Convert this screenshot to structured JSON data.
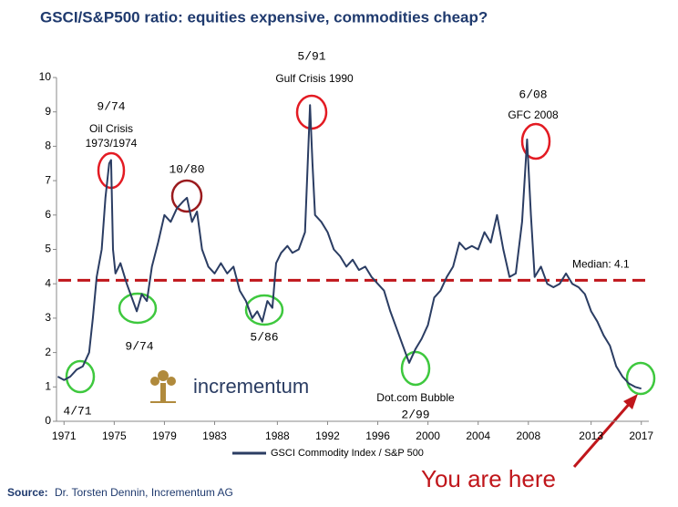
{
  "chart_data": {
    "type": "line",
    "title": "GSCI/S&P500 ratio: equities expensive, commodities cheap?",
    "x": [
      1970.5,
      1971,
      1971.5,
      1972,
      1972.5,
      1973,
      1973.3,
      1973.6,
      1974,
      1974.3,
      1974.6,
      1974.75,
      1974.9,
      1975.1,
      1975.5,
      1976,
      1976.5,
      1976.8,
      1977.2,
      1977.6,
      1978,
      1978.5,
      1979,
      1979.5,
      1980,
      1980.5,
      1980.8,
      1981.2,
      1981.6,
      1982,
      1982.5,
      1983,
      1983.5,
      1984,
      1984.5,
      1985,
      1985.5,
      1986,
      1986.4,
      1986.8,
      1987.2,
      1987.6,
      1987.9,
      1988.3,
      1988.8,
      1989.2,
      1989.7,
      1990.2,
      1990.6,
      1990.8,
      1991,
      1991.5,
      1992,
      1992.5,
      1993,
      1993.5,
      1994,
      1994.5,
      1995,
      1995.5,
      1996,
      1996.5,
      1997,
      1997.5,
      1998,
      1998.5,
      1999,
      1999.5,
      2000,
      2000.5,
      2001,
      2001.5,
      2002,
      2002.5,
      2003,
      2003.5,
      2004,
      2004.5,
      2005,
      2005.5,
      2006,
      2006.5,
      2007,
      2007.5,
      2007.9,
      2008.2,
      2008.5,
      2009,
      2009.5,
      2010,
      2010.5,
      2011,
      2011.5,
      2012,
      2012.5,
      2013,
      2013.5,
      2014,
      2014.5,
      2015,
      2015.5,
      2016,
      2016.5,
      2017
    ],
    "series": [
      {
        "name": "GSCI Commodity Index / S&P 500",
        "color": "#2b3d63",
        "values": [
          1.3,
          1.2,
          1.3,
          1.5,
          1.6,
          2.0,
          3.0,
          4.2,
          5.0,
          6.5,
          7.5,
          7.6,
          5.0,
          4.3,
          4.6,
          4.0,
          3.5,
          3.2,
          3.7,
          3.5,
          4.5,
          5.2,
          6.0,
          5.8,
          6.2,
          6.4,
          6.5,
          5.8,
          6.1,
          5.0,
          4.5,
          4.3,
          4.6,
          4.3,
          4.5,
          3.8,
          3.5,
          3.0,
          3.2,
          2.9,
          3.5,
          3.3,
          4.6,
          4.9,
          5.1,
          4.9,
          5.0,
          5.5,
          9.2,
          7.5,
          6.0,
          5.8,
          5.5,
          5.0,
          4.8,
          4.5,
          4.7,
          4.4,
          4.5,
          4.2,
          4.0,
          3.8,
          3.2,
          2.7,
          2.2,
          1.7,
          2.1,
          2.4,
          2.8,
          3.6,
          3.8,
          4.2,
          4.5,
          5.2,
          5.0,
          5.1,
          5.0,
          5.5,
          5.2,
          6.0,
          5.0,
          4.2,
          4.3,
          5.8,
          8.2,
          6.0,
          4.2,
          4.5,
          4.0,
          3.9,
          4.0,
          4.3,
          4.0,
          3.9,
          3.7,
          3.2,
          2.9,
          2.5,
          2.2,
          1.6,
          1.3,
          1.1,
          1.0,
          0.95
        ]
      }
    ],
    "xlim": [
      1970.4,
      2017.6
    ],
    "xticks": [
      1971,
      1975,
      1979,
      1983,
      1988,
      1992,
      1996,
      2000,
      2004,
      2008,
      2013,
      2017
    ],
    "ylim": [
      0,
      10
    ],
    "yticks": [
      0,
      1,
      2,
      3,
      4,
      5,
      6,
      7,
      8,
      9,
      10
    ],
    "median_line": {
      "value": 4.1,
      "label": "Median: 4.1",
      "color": "#c0161b"
    },
    "annotations": [
      "9/74",
      "Oil Crisis",
      "1973/1974",
      "10/80",
      "5/91",
      "Gulf Crisis 1990",
      "6/08",
      "GFC 2008",
      "4/71",
      "9/74",
      "5/86",
      "Dot.com Bubble",
      "2/99"
    ],
    "callout": "You are here",
    "logo": "incrementum",
    "source_label": "Source:",
    "source_text": "Dr. Torsten Dennin, Incrementum AG"
  }
}
